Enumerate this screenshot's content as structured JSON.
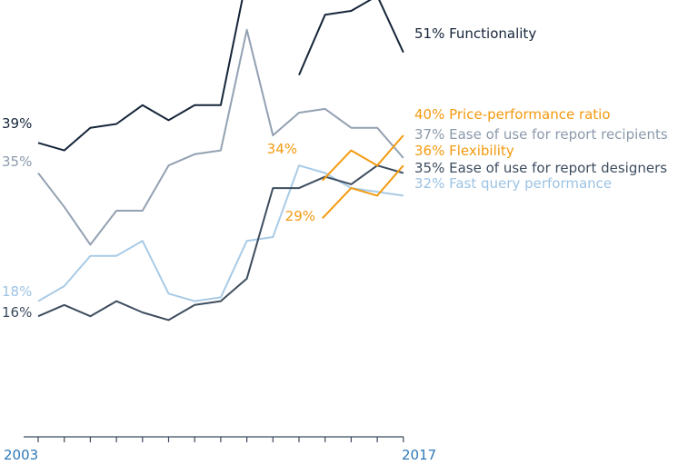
{
  "chart_data": {
    "type": "line",
    "x": [
      2003,
      2004,
      2005,
      2006,
      2007,
      2008,
      2009,
      2010,
      2011,
      2012,
      2013,
      2014,
      2015,
      2016,
      2017
    ],
    "x_tick_labels": [
      "2003",
      "2017"
    ],
    "ylim": [
      0,
      60
    ],
    "grid": false,
    "legend": "right",
    "series": [
      {
        "key": "functionality",
        "name": "Functionality",
        "end_label": "51% Functionality",
        "start_label": "39%",
        "color": "#16253a",
        "label_color": "#16253a",
        "values": [
          39,
          38,
          41,
          41.5,
          44,
          42,
          44,
          44,
          61,
          null,
          48,
          56,
          56.5,
          58.5,
          51
        ]
      },
      {
        "key": "ease_recipients",
        "name": "Ease of use for report recipients",
        "end_label": "37% Ease of use for report recipients",
        "start_label": "35%",
        "color": "#93a1b2",
        "label_color": "#8b9aab",
        "values": [
          35,
          30.5,
          25.5,
          30,
          30,
          36,
          37.5,
          38,
          54,
          40,
          43,
          43.5,
          41,
          41,
          37
        ]
      },
      {
        "key": "fast_query",
        "name": "Fast query performance",
        "end_label": "32% Fast query performance",
        "start_label": "18%",
        "color": "#a9cbe6",
        "label_color": "#9cc3e4",
        "values": [
          18,
          20,
          24,
          24,
          26,
          19,
          18,
          18.5,
          26,
          26.5,
          36,
          35,
          33,
          32.5,
          32
        ]
      },
      {
        "key": "ease_designers",
        "name": "Ease of use for report designers",
        "end_label": "35% Ease of use for report designers",
        "start_label": "16%",
        "color": "#3e4d5f",
        "label_color": "#3e4d5f",
        "values": [
          16,
          17.5,
          16,
          18,
          16.5,
          15.5,
          17.5,
          18,
          21,
          33,
          33,
          34.5,
          33.5,
          36,
          35
        ]
      },
      {
        "key": "price_performance",
        "name": "Price-performance ratio",
        "end_label": "40% Price-performance ratio",
        "start_label": "34%",
        "color": "#f39a0f",
        "label_color": "#f39a0f",
        "values": [
          null,
          null,
          null,
          null,
          null,
          null,
          null,
          null,
          null,
          null,
          null,
          34,
          38,
          36,
          40
        ],
        "start_index": 11,
        "start_shown_at": 10.9
      },
      {
        "key": "flexibility",
        "name": "Flexibility",
        "end_label": "36% Flexibility",
        "start_label": "29%",
        "color": "#f39a0f",
        "label_color": "#f39a0f",
        "values": [
          null,
          null,
          null,
          null,
          null,
          null,
          null,
          null,
          null,
          null,
          null,
          29,
          33,
          32,
          36
        ],
        "start_index": 11,
        "start_shown_at": 10.9
      }
    ]
  }
}
